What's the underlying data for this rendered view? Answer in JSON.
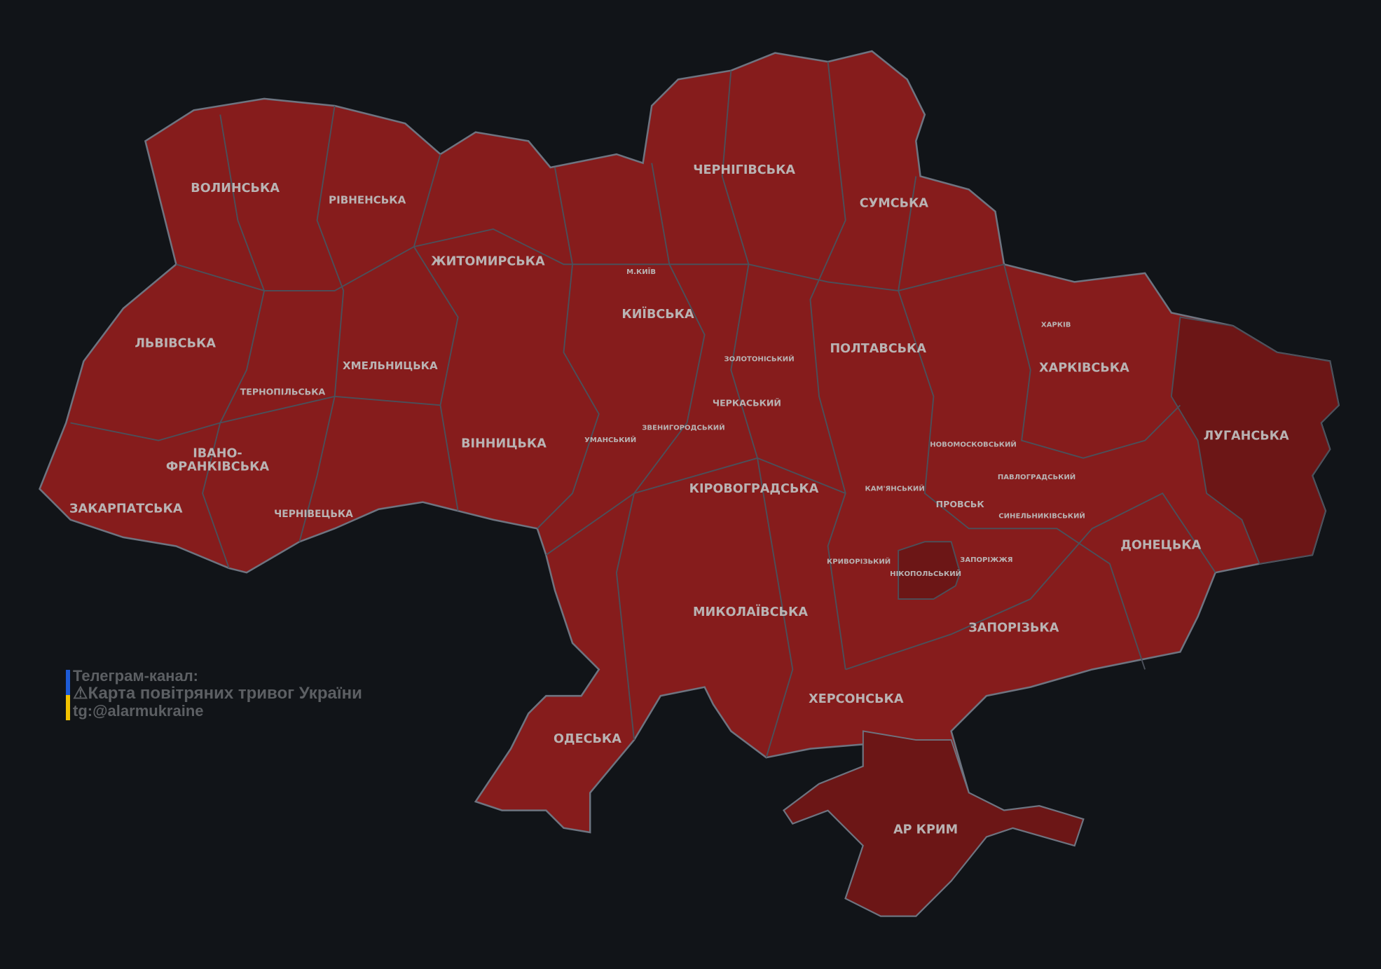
{
  "colors": {
    "background": "#111418",
    "alert": "#861c1c",
    "alert_dark": "#6c1616",
    "border": "#4b505a",
    "label": "#b9b3b3"
  },
  "oblasts": [
    {
      "name": "ВОЛИНСЬКА"
    },
    {
      "name": "РІВНЕНСЬКА"
    },
    {
      "name": "ЖИТОМИРСЬКА"
    },
    {
      "name": "ЧЕРНІГІВСЬКА"
    },
    {
      "name": "СУМСЬКА"
    },
    {
      "name": "ЛЬВІВСЬКА"
    },
    {
      "name": "ХМЕЛЬНИЦЬКА"
    },
    {
      "name": "ТЕРНОПІЛЬСЬКА"
    },
    {
      "name": "КИЇВСЬКА"
    },
    {
      "name": "ПОЛТАВСЬКА"
    },
    {
      "name": "ХАРКІВСЬКА"
    },
    {
      "name": "ЛУГАНСЬКА"
    },
    {
      "name": "ІВАНО-"
    },
    {
      "name": "ФРАНКІВСЬКА"
    },
    {
      "name": "ВІННИЦЬКА"
    },
    {
      "name": "ЗАКАРПАТСЬКА"
    },
    {
      "name": "ЧЕРНІВЕЦЬКА"
    },
    {
      "name": "КІРОВОГРАДСЬКА"
    },
    {
      "name": "ДОНЕЦЬКА"
    },
    {
      "name": "МИКОЛАЇВСЬКА"
    },
    {
      "name": "ЗАПОРІЗЬКА"
    },
    {
      "name": "ХЕРСОНСЬКА"
    },
    {
      "name": "ОДЕСЬКА"
    },
    {
      "name": "АР КРИМ"
    }
  ],
  "districts": [
    {
      "name": "М.КИЇВ"
    },
    {
      "name": "ХАРКІВ"
    },
    {
      "name": "ЗОЛОТОНІСЬКИЙ"
    },
    {
      "name": "ЧЕРКАСЬКИЙ"
    },
    {
      "name": "ЗВЕНИГОРОДСЬКИЙ"
    },
    {
      "name": "УМАНСЬКИЙ"
    },
    {
      "name": "НОВОМОСКОВСЬКИЙ"
    },
    {
      "name": "ПАВЛОГРАДСЬКИЙ"
    },
    {
      "name": "КАМ'ЯНСЬКИЙ"
    },
    {
      "name": "ПРОВСЬК"
    },
    {
      "name": "СИНЕЛЬНИКІВСЬКИЙ"
    },
    {
      "name": "КРИВОРІЗЬКИЙ"
    },
    {
      "name": "ЗАПОРІЖЖЯ"
    },
    {
      "name": "НІКОПОЛЬСЬКИЙ"
    }
  ],
  "credit": {
    "line1": "Телеграм-канал:",
    "icon": "warning-icon",
    "line2": "Карта повітряних тривог України",
    "line3": "tg:@alarmukraine"
  }
}
